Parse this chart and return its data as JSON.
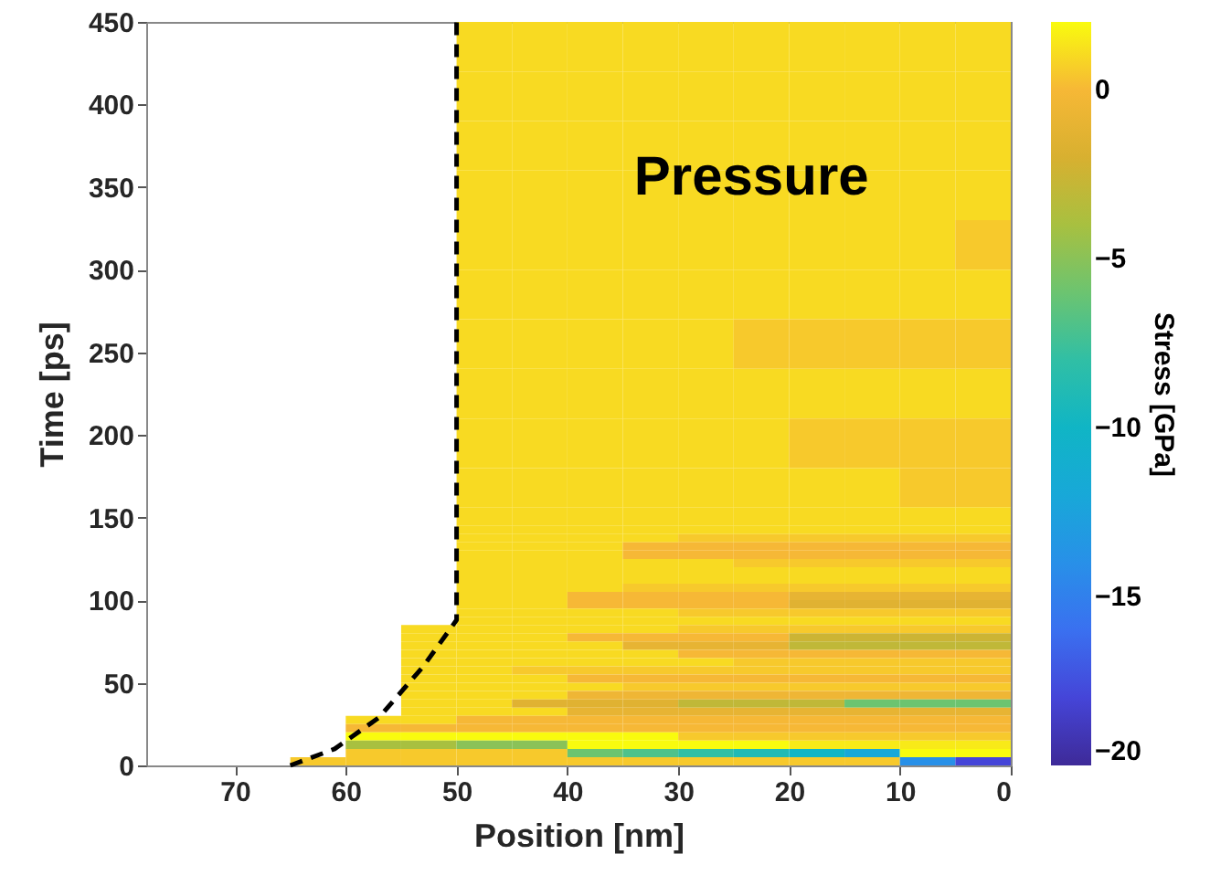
{
  "chart_data": {
    "type": "heatmap",
    "xlabel": "Position [nm]",
    "ylabel": "Time [ps]",
    "clabel": "Stress [GPa]",
    "annotations": [
      "Pressure"
    ],
    "x": [
      62.5,
      57.5,
      52.5,
      47.5,
      42.5,
      37.5,
      32.5,
      27.5,
      22.5,
      17.5,
      12.5,
      7.5,
      2.5
    ],
    "y": [
      435,
      405,
      375,
      345,
      315,
      285,
      255,
      225,
      195,
      165,
      147.5,
      142.5,
      137.5,
      132.5,
      127.5,
      122.5,
      117.5,
      112.5,
      107.5,
      102.5,
      97.5,
      92.5,
      87.5,
      82.5,
      77.5,
      72.5,
      67.5,
      62.5,
      57.5,
      52.5,
      47.5,
      42.5,
      37.5,
      32.5,
      27.5,
      22.5,
      17.5,
      12.5,
      7.5,
      2.5
    ],
    "cells": [
      [
        null,
        null,
        null,
        1,
        1,
        1,
        1,
        1,
        1,
        1,
        1,
        1,
        1
      ],
      [
        null,
        null,
        null,
        1,
        1,
        1,
        1,
        1,
        1,
        1,
        1,
        1,
        1
      ],
      [
        null,
        null,
        null,
        1,
        1,
        1,
        1,
        1,
        1,
        1,
        1,
        1,
        1
      ],
      [
        null,
        null,
        null,
        1,
        1,
        1,
        1,
        1,
        1,
        1,
        1,
        1,
        1
      ],
      [
        null,
        null,
        null,
        1,
        1,
        1,
        1,
        1,
        1,
        1,
        1,
        1,
        0.5
      ],
      [
        null,
        null,
        null,
        1,
        1,
        1,
        1,
        1,
        1,
        1,
        1,
        1,
        1
      ],
      [
        null,
        null,
        null,
        1,
        1,
        1,
        1,
        1,
        0.5,
        0.5,
        0.5,
        0.5,
        0.5
      ],
      [
        null,
        null,
        null,
        1,
        1,
        1,
        1,
        1,
        1,
        1,
        1,
        1,
        1
      ],
      [
        null,
        null,
        null,
        1,
        1,
        1,
        1,
        1,
        1,
        0.5,
        0.5,
        0.5,
        0.5
      ],
      [
        null,
        null,
        null,
        1,
        1,
        1,
        1,
        1,
        1,
        1,
        1,
        0.5,
        0.5
      ],
      [
        null,
        null,
        null,
        1,
        1,
        1,
        1,
        1,
        1,
        1,
        1,
        1,
        1
      ],
      [
        null,
        null,
        null,
        1,
        1,
        1,
        1,
        1,
        1,
        1,
        1,
        1,
        1
      ],
      [
        null,
        null,
        null,
        1,
        1,
        1,
        1,
        0.5,
        0.5,
        0.5,
        0.5,
        0.5,
        0.5
      ],
      [
        null,
        null,
        null,
        1,
        1,
        1,
        0,
        0,
        0,
        0,
        0,
        0,
        0
      ],
      [
        null,
        null,
        null,
        1,
        1,
        1,
        0,
        0,
        0,
        0,
        0,
        0,
        0
      ],
      [
        null,
        null,
        null,
        1,
        1,
        1,
        1,
        1,
        0.5,
        0.5,
        0.5,
        0.5,
        0.5
      ],
      [
        null,
        null,
        null,
        1,
        1,
        1,
        1,
        1,
        1,
        1,
        1,
        1,
        1
      ],
      [
        null,
        null,
        null,
        1,
        1,
        1,
        1,
        1,
        1,
        1,
        1,
        1,
        1
      ],
      [
        null,
        null,
        null,
        1,
        1,
        1,
        0.5,
        0.5,
        0.5,
        0.5,
        0.5,
        0.5,
        0.5
      ],
      [
        null,
        null,
        null,
        1,
        1,
        0,
        0,
        0,
        0,
        -1,
        -1,
        -1,
        -1
      ],
      [
        null,
        null,
        null,
        1,
        1,
        0,
        0,
        0,
        0,
        -1.5,
        -1.5,
        -1.5,
        -1.5
      ],
      [
        null,
        null,
        null,
        1,
        1,
        1,
        1,
        0.5,
        0.5,
        0.5,
        0.5,
        0.5,
        0.5
      ],
      [
        null,
        null,
        null,
        1,
        1,
        1,
        1,
        1,
        1,
        1,
        1,
        1,
        1
      ],
      [
        null,
        null,
        1,
        1,
        1,
        1,
        1,
        0.5,
        0.5,
        0.5,
        0.5,
        0.5,
        0.5
      ],
      [
        null,
        null,
        1,
        1,
        1,
        0,
        0,
        0,
        0,
        -2.5,
        -2.5,
        -2.5,
        -2.5
      ],
      [
        null,
        null,
        1,
        1,
        1,
        1,
        -1,
        -1,
        -1,
        -3,
        -3,
        -3,
        -3
      ],
      [
        null,
        null,
        1,
        1,
        1,
        1,
        1,
        0,
        0,
        0,
        0,
        0,
        0
      ],
      [
        null,
        null,
        1,
        1,
        1,
        1,
        1,
        1,
        0.5,
        0.5,
        0.5,
        0.5,
        0.5
      ],
      [
        null,
        null,
        1,
        1,
        0.5,
        0.5,
        0.5,
        0.5,
        0.5,
        0.5,
        0.5,
        0.5,
        0.5
      ],
      [
        null,
        null,
        1,
        1,
        1,
        0,
        0,
        0,
        0,
        0,
        0,
        0,
        0
      ],
      [
        null,
        null,
        1,
        1,
        1,
        1,
        0.5,
        0.5,
        0.5,
        0.5,
        0.5,
        0.5,
        0.5
      ],
      [
        null,
        null,
        1,
        1,
        1,
        -0.5,
        -0.5,
        -0.5,
        -0.5,
        -0.5,
        -0.5,
        -0.5,
        -0.5
      ],
      [
        null,
        null,
        1,
        1,
        -1.5,
        -1.5,
        -1.5,
        -3,
        -3,
        -3,
        -6,
        -6,
        -6
      ],
      [
        null,
        null,
        1,
        1,
        1,
        -1,
        -1,
        -1,
        -1,
        -1,
        -1,
        -1,
        -1
      ],
      [
        null,
        1,
        1,
        0,
        0,
        0,
        0,
        0,
        0,
        0,
        0,
        0,
        0
      ],
      [
        null,
        0,
        0,
        0,
        0,
        0,
        0,
        0,
        0,
        0,
        0,
        0,
        0
      ],
      [
        null,
        2,
        2,
        2,
        2,
        2,
        2,
        0.5,
        0.5,
        0.5,
        0.5,
        0.5,
        0.5
      ],
      [
        null,
        -4,
        -4,
        -5,
        -5,
        2,
        2,
        2,
        2,
        1.5,
        1.5,
        1.5,
        1.5
      ],
      [
        null,
        0.5,
        0.5,
        0.5,
        0.5,
        -6,
        -7,
        -8,
        -9,
        -10,
        -12,
        2,
        2
      ],
      [
        0.5,
        0.5,
        0.5,
        0.5,
        0.5,
        0.5,
        0.5,
        0.5,
        0.5,
        0.5,
        0.5,
        -14,
        -18
      ]
    ],
    "xlim": [
      78,
      0
    ],
    "ylim": [
      0,
      450
    ],
    "xticks": [
      70,
      60,
      50,
      40,
      30,
      20,
      10,
      0
    ],
    "yticks": [
      0,
      50,
      100,
      150,
      200,
      250,
      300,
      350,
      400,
      450
    ],
    "clim": [
      -20,
      2
    ],
    "cticks": [
      -20,
      -15,
      -10,
      -5,
      0
    ],
    "series": [
      {
        "type": "line",
        "color": "#000000",
        "line_style": "dashed",
        "x": [
          65,
          61,
          57,
          53,
          50,
          50
        ],
        "values": [
          0,
          10,
          29,
          60,
          88,
          450
        ]
      }
    ]
  }
}
